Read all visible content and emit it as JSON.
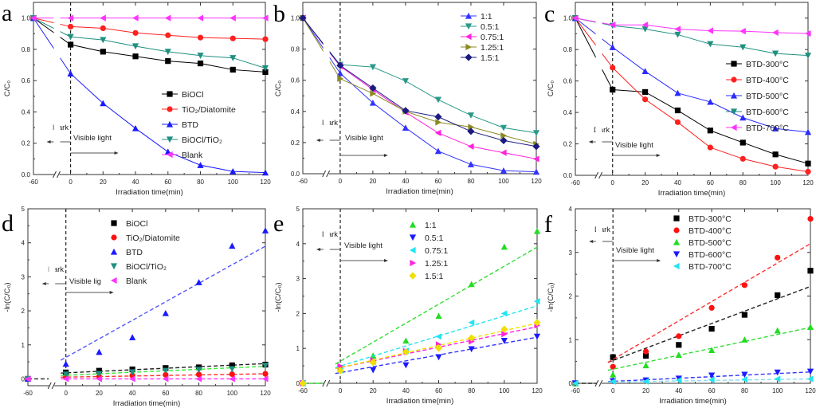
{
  "chart_data": [
    {
      "panel": "a",
      "type": "line",
      "xlabel": "Irradiation time(min)",
      "ylabel": "C/C₀",
      "ylim": [
        0,
        1.1
      ],
      "x": [
        -60,
        0,
        20,
        40,
        60,
        80,
        100,
        120
      ],
      "x_ticks": [
        -60,
        0,
        20,
        40,
        60,
        80,
        100,
        120
      ],
      "y_ticks": [
        "0.0",
        "0.2",
        "0.4",
        "0.6",
        "0.8",
        "1.0"
      ],
      "y_tick_values": [
        0,
        0.2,
        0.4,
        0.6,
        0.8,
        1.0
      ],
      "annotations": {
        "dark": "Dark",
        "light": "Visible light"
      },
      "legend": "right",
      "series": [
        {
          "name": "BiOCl",
          "color": "#000000",
          "marker": "square",
          "values": [
            1,
            0.83,
            0.785,
            0.755,
            0.725,
            0.71,
            0.67,
            0.655
          ]
        },
        {
          "name": "TiO₂/Diatomite",
          "color": "#ff2020",
          "marker": "circle",
          "values": [
            1,
            0.945,
            0.935,
            0.905,
            0.89,
            0.875,
            0.87,
            0.865
          ]
        },
        {
          "name": "BTD",
          "color": "#1a1aff",
          "marker": "triangle-up",
          "values": [
            1,
            0.645,
            0.455,
            0.295,
            0.145,
            0.06,
            0.02,
            0.012
          ]
        },
        {
          "name": "BiOCl/TiO₂",
          "color": "#1f8f80",
          "marker": "triangle-down",
          "values": [
            1,
            0.88,
            0.86,
            0.82,
            0.785,
            0.76,
            0.745,
            0.68
          ]
        },
        {
          "name": "Blank",
          "color": "#ff33ff",
          "marker": "triangle-left",
          "values": [
            1,
            1,
            1,
            1,
            1,
            1,
            1,
            1
          ]
        }
      ]
    },
    {
      "panel": "b",
      "type": "line",
      "xlabel": "Irradiation time(min)",
      "ylabel": "C/C₀",
      "ylim": [
        0,
        1.1
      ],
      "x": [
        -60,
        0,
        20,
        40,
        60,
        80,
        100,
        120
      ],
      "x_ticks": [
        -60,
        0,
        20,
        40,
        60,
        80,
        100,
        120
      ],
      "y_ticks": [
        "0.0",
        "0.2",
        "0.4",
        "0.6",
        "0.8",
        "1.0"
      ],
      "y_tick_values": [
        0,
        0.2,
        0.4,
        0.6,
        0.8,
        1.0
      ],
      "annotations": {
        "dark": "Dark",
        "light": "Visible light"
      },
      "legend": "top-right",
      "series": [
        {
          "name": "1:1",
          "color": "#3333ff",
          "marker": "triangle-up",
          "values": [
            1,
            0.645,
            0.455,
            0.295,
            0.145,
            0.06,
            0.02,
            0.012
          ]
        },
        {
          "name": "0.5:1",
          "color": "#2a9a8a",
          "marker": "triangle-down",
          "values": [
            1,
            0.7,
            0.685,
            0.595,
            0.475,
            0.375,
            0.295,
            0.262
          ]
        },
        {
          "name": "0.75:1",
          "color": "#ff22dd",
          "marker": "triangle-left",
          "values": [
            1,
            0.69,
            0.54,
            0.395,
            0.262,
            0.175,
            0.135,
            0.095
          ]
        },
        {
          "name": "1.25:1",
          "color": "#8a8a20",
          "marker": "triangle-right",
          "values": [
            1,
            0.61,
            0.515,
            0.4,
            0.33,
            0.3,
            0.245,
            0.19
          ]
        },
        {
          "name": "1.5:1",
          "color": "#1a1a80",
          "marker": "diamond",
          "values": [
            1,
            0.695,
            0.55,
            0.405,
            0.365,
            0.272,
            0.213,
            0.175
          ]
        }
      ]
    },
    {
      "panel": "c",
      "type": "line",
      "xlabel": "Irradiation time(min)",
      "ylabel": "C/C₀",
      "ylim": [
        0,
        1.1
      ],
      "x": [
        -60,
        0,
        20,
        40,
        60,
        80,
        100,
        120
      ],
      "x_ticks": [
        -60,
        0,
        20,
        40,
        60,
        80,
        100,
        120
      ],
      "y_ticks": [
        "0.0",
        "0.2",
        "0.4",
        "0.6",
        "0.8",
        "1.0"
      ],
      "y_tick_values": [
        0,
        0.2,
        0.4,
        0.6,
        0.8,
        1.0
      ],
      "annotations": {
        "dark": "Dark",
        "light": "Visible light"
      },
      "legend": "right",
      "series": [
        {
          "name": "BTD-300°C",
          "color": "#000000",
          "marker": "square",
          "values": [
            1,
            0.545,
            0.53,
            0.413,
            0.285,
            0.208,
            0.133,
            0.075
          ]
        },
        {
          "name": "BTD-400°C",
          "color": "#ff2020",
          "marker": "circle",
          "values": [
            1,
            0.685,
            0.483,
            0.338,
            0.177,
            0.105,
            0.055,
            0.023
          ]
        },
        {
          "name": "BTD-500°C",
          "color": "#2a2aff",
          "marker": "triangle-up",
          "values": [
            1,
            0.815,
            0.662,
            0.523,
            0.467,
            0.367,
            0.298,
            0.275
          ]
        },
        {
          "name": "BTD-600°C",
          "color": "#1f8f80",
          "marker": "triangle-down",
          "values": [
            1,
            0.952,
            0.93,
            0.895,
            0.835,
            0.815,
            0.775,
            0.762
          ]
        },
        {
          "name": "BTD-700°C",
          "color": "#ff33ff",
          "marker": "triangle-left",
          "values": [
            1,
            0.957,
            0.957,
            0.93,
            0.92,
            0.917,
            0.908,
            0.902
          ]
        }
      ]
    },
    {
      "panel": "d",
      "type": "scatter",
      "xlabel": "Irradiation time(min)",
      "ylabel": "-ln(C/C₀)",
      "ylim": [
        -0.2,
        5
      ],
      "x": [
        -60,
        0,
        20,
        40,
        60,
        80,
        100,
        120
      ],
      "x_ticks": [
        -60,
        0,
        20,
        40,
        60,
        80,
        100,
        120
      ],
      "y_ticks": [
        "0",
        "1",
        "2",
        "3",
        "4",
        "5"
      ],
      "y_tick_values": [
        0,
        1,
        2,
        3,
        4,
        5
      ],
      "annotations": {
        "dark": "Dark",
        "light": "Visible lig"
      },
      "legend": "top",
      "series": [
        {
          "name": "BiOCl",
          "color": "#000000",
          "fit_color": "#222222",
          "marker": "square",
          "values": [
            0,
            0.19,
            0.24,
            0.28,
            0.32,
            0.34,
            0.4,
            0.42
          ],
          "fit": [
            [
              -8,
              0.17
            ],
            [
              120,
              0.45
            ]
          ]
        },
        {
          "name": "TiO₂/Diatomite",
          "color": "#ff1010",
          "fit_color": "#ff3030",
          "marker": "circle",
          "values": [
            0,
            0.06,
            0.07,
            0.1,
            0.12,
            0.13,
            0.14,
            0.15
          ],
          "fit": [
            [
              -8,
              0.05
            ],
            [
              120,
              0.15
            ]
          ]
        },
        {
          "name": "BTD",
          "color": "#1a1aff",
          "fit_color": "#5555ff",
          "marker": "triangle-up",
          "values": [
            0,
            0.44,
            0.79,
            1.22,
            1.93,
            2.84,
            3.91,
            4.36
          ],
          "fit": [
            [
              -8,
              0.55
            ],
            [
              120,
              3.9
            ]
          ]
        },
        {
          "name": "BiOCl/TiO₂",
          "color": "#1f8f80",
          "fit_color": "#33ee33",
          "marker": "triangle-down",
          "values": [
            0,
            0.13,
            0.15,
            0.2,
            0.24,
            0.27,
            0.29,
            0.39
          ],
          "fit": [
            [
              -8,
              0.1
            ],
            [
              120,
              0.37
            ]
          ]
        },
        {
          "name": "Blank",
          "color": "#ff33ff",
          "fit_color": "#ff33ff",
          "marker": "triangle-left",
          "values": [
            0,
            0,
            0,
            0,
            0,
            0,
            0,
            0
          ],
          "fit": [
            [
              -8,
              0
            ],
            [
              120,
              0
            ]
          ]
        }
      ]
    },
    {
      "panel": "e",
      "type": "scatter",
      "xlabel": "Irradiation time(min)",
      "ylabel": "-ln(C/C₀)",
      "ylim": [
        0,
        5
      ],
      "x": [
        -60,
        0,
        20,
        40,
        60,
        80,
        100,
        120
      ],
      "x_ticks": [
        -60,
        0,
        20,
        40,
        60,
        80,
        100,
        120
      ],
      "y_ticks": [
        "0",
        "1",
        "2",
        "3",
        "4",
        "5"
      ],
      "y_tick_values": [
        0,
        1,
        2,
        3,
        4,
        5
      ],
      "annotations": {
        "dark": "Dark",
        "light": "Visible light"
      },
      "legend": "top",
      "series": [
        {
          "name": "1:1",
          "color": "#22dd22",
          "fit_color": "#33dd33",
          "marker": "triangle-up",
          "values": [
            0,
            0.44,
            0.79,
            1.22,
            1.93,
            2.84,
            3.91,
            4.36
          ],
          "fit": [
            [
              -8,
              0.55
            ],
            [
              120,
              3.9
            ]
          ]
        },
        {
          "name": "0.5:1",
          "color": "#1a1aff",
          "fit_color": "#3333ff",
          "marker": "triangle-down",
          "values": [
            0,
            0.36,
            0.38,
            0.52,
            0.75,
            0.98,
            1.22,
            1.34
          ],
          "fit": [
            [
              -8,
              0.28
            ],
            [
              120,
              1.32
            ]
          ]
        },
        {
          "name": "0.75:1",
          "color": "#22e5f0",
          "fit_color": "#22e5f0",
          "marker": "triangle-left",
          "values": [
            0,
            0.37,
            0.62,
            0.93,
            1.34,
            1.74,
            2.0,
            2.35
          ],
          "fit": [
            [
              -8,
              0.45
            ],
            [
              120,
              2.22
            ]
          ]
        },
        {
          "name": "1.25:1",
          "color": "#ff22dd",
          "fit_color": "#ff22dd",
          "marker": "triangle-right",
          "values": [
            0,
            0.49,
            0.66,
            0.92,
            1.11,
            1.2,
            1.41,
            1.66
          ],
          "fit": [
            [
              -8,
              0.42
            ],
            [
              120,
              1.62
            ]
          ]
        },
        {
          "name": "1.5:1",
          "color": "#f0e000",
          "fit_color": "#f0e000",
          "marker": "diamond",
          "values": [
            0,
            0.36,
            0.6,
            0.9,
            1.01,
            1.3,
            1.55,
            1.74
          ],
          "fit": [
            [
              -8,
              0.42
            ],
            [
              120,
              1.72
            ]
          ]
        }
      ]
    },
    {
      "panel": "f",
      "type": "scatter",
      "xlabel": "Irradiation time(min)",
      "ylabel": "-ln(C/C₀)",
      "ylim": [
        0,
        4
      ],
      "x": [
        -60,
        0,
        20,
        40,
        60,
        80,
        100,
        120
      ],
      "x_ticks": [
        -60,
        0,
        20,
        40,
        60,
        80,
        100,
        120
      ],
      "y_ticks": [
        "0",
        "1",
        "2",
        "3",
        "4"
      ],
      "y_tick_values": [
        0,
        1,
        2,
        3,
        4
      ],
      "annotations": {
        "dark": "Dark",
        "light": "Visible light"
      },
      "legend": "top",
      "series": [
        {
          "name": "BTD-300°C",
          "color": "#000000",
          "fit_color": "#222222",
          "marker": "square",
          "values": [
            0,
            0.6,
            0.63,
            0.88,
            1.25,
            1.57,
            2.02,
            2.58
          ],
          "fit": [
            [
              -8,
              0.48
            ],
            [
              120,
              2.22
            ]
          ]
        },
        {
          "name": "BTD-400°C",
          "color": "#ff1010",
          "fit_color": "#ff3030",
          "marker": "circle",
          "values": [
            0,
            0.38,
            0.73,
            1.08,
            1.73,
            2.25,
            2.88,
            3.77
          ],
          "fit": [
            [
              -8,
              0.48
            ],
            [
              120,
              3.2
            ]
          ]
        },
        {
          "name": "BTD-500°C",
          "color": "#22dd22",
          "fit_color": "#33dd33",
          "marker": "triangle-up",
          "values": [
            0,
            0.2,
            0.41,
            0.65,
            0.76,
            1.0,
            1.21,
            1.29
          ],
          "fit": [
            [
              -8,
              0.3
            ],
            [
              120,
              1.28
            ]
          ]
        },
        {
          "name": "BTD-600°C",
          "color": "#1a1aff",
          "fit_color": "#3333ff",
          "marker": "triangle-down",
          "values": [
            0,
            0.05,
            0.07,
            0.11,
            0.18,
            0.2,
            0.25,
            0.27
          ],
          "fit": [
            [
              -8,
              0.04
            ],
            [
              120,
              0.26
            ]
          ]
        },
        {
          "name": "BTD-700°C",
          "color": "#22e5f0",
          "fit_color": "#88ddf0",
          "marker": "triangle-left",
          "values": [
            0,
            0.04,
            0.04,
            0.07,
            0.08,
            0.09,
            0.1,
            0.1
          ],
          "fit": [
            [
              -8,
              0.03
            ],
            [
              120,
              0.1
            ]
          ]
        }
      ]
    }
  ]
}
